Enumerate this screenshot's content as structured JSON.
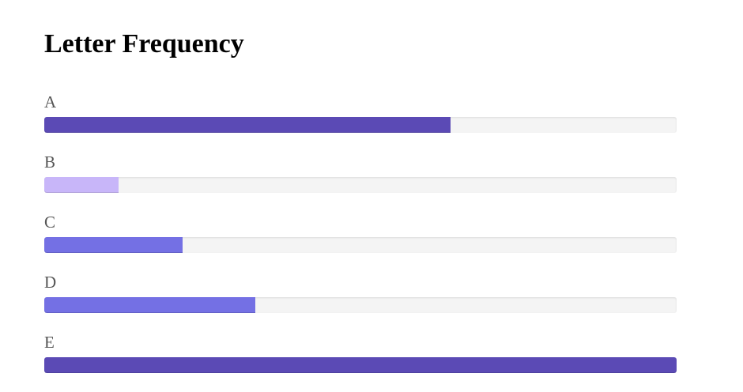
{
  "chart_data": {
    "type": "bar",
    "orientation": "horizontal",
    "title": "Letter Frequency",
    "categories": [
      "A",
      "B",
      "C",
      "D",
      "E"
    ],
    "values": [
      64.2,
      11.7,
      21.9,
      33.4,
      100
    ],
    "xlim": [
      0,
      100
    ],
    "colors": [
      "#5b4ab5",
      "#c8b6f9",
      "#7470e4",
      "#7470e4",
      "#5b4ab5"
    ],
    "track_color": "#f4f4f4",
    "grid": false
  }
}
